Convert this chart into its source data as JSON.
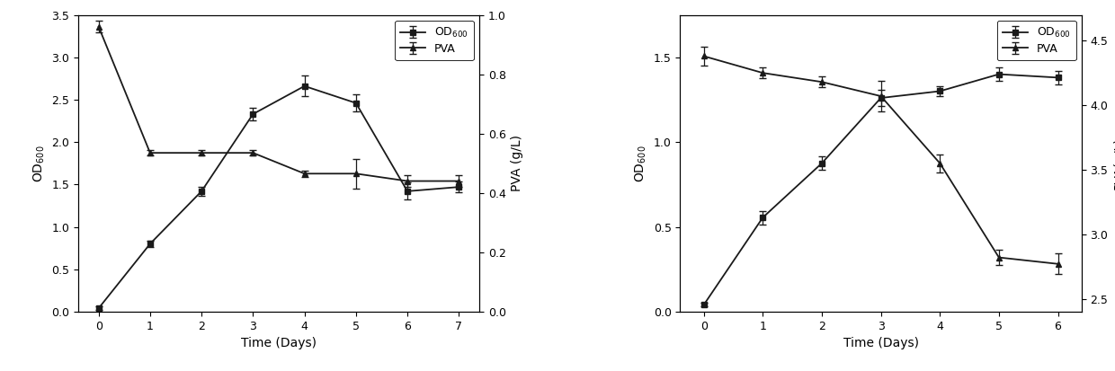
{
  "left": {
    "od_x": [
      0,
      1,
      2,
      3,
      4,
      5,
      6,
      7
    ],
    "od_y": [
      0.04,
      0.8,
      1.42,
      2.33,
      2.66,
      2.46,
      1.42,
      1.47
    ],
    "od_yerr": [
      0.02,
      0.04,
      0.05,
      0.07,
      0.12,
      0.1,
      0.1,
      0.06
    ],
    "pva_x": [
      0,
      1,
      2,
      3,
      4,
      5,
      6,
      7
    ],
    "pva_y": [
      0.96,
      0.535,
      0.535,
      0.535,
      0.465,
      0.465,
      0.44,
      0.44
    ],
    "pva_yerr": [
      0.02,
      0.01,
      0.01,
      0.01,
      0.01,
      0.05,
      0.02,
      0.02
    ],
    "ylabel_left": "OD$_{600}$",
    "ylabel_right": "PVA (g/L)",
    "xlabel": "Time (Days)",
    "ylim_left": [
      0.0,
      3.5
    ],
    "ylim_right": [
      0.0,
      1.0
    ],
    "yticks_left": [
      0.0,
      0.5,
      1.0,
      1.5,
      2.0,
      2.5,
      3.0,
      3.5
    ],
    "yticks_right": [
      0.0,
      0.2,
      0.4,
      0.6,
      0.8,
      1.0
    ],
    "xticks": [
      0,
      1,
      2,
      3,
      4,
      5,
      6,
      7
    ]
  },
  "right": {
    "od_x": [
      0,
      1,
      2,
      3,
      4,
      5,
      6
    ],
    "od_y": [
      0.04,
      0.555,
      0.875,
      1.26,
      1.3,
      1.4,
      1.38
    ],
    "od_yerr": [
      0.01,
      0.04,
      0.04,
      0.05,
      0.03,
      0.04,
      0.04
    ],
    "pva_x": [
      0,
      1,
      2,
      3,
      4,
      5,
      6
    ],
    "pva_y": [
      4.38,
      4.25,
      4.18,
      4.07,
      3.55,
      2.82,
      2.77
    ],
    "pva_yerr": [
      0.07,
      0.04,
      0.04,
      0.12,
      0.07,
      0.06,
      0.08
    ],
    "ylabel_left": "OD$_{600}$",
    "ylabel_right": "PVA(g/L)",
    "xlabel": "Time (Days)",
    "ylim_left": [
      0.0,
      1.75
    ],
    "ylim_right": [
      2.4,
      4.7
    ],
    "yticks_left": [
      0.0,
      0.5,
      1.0,
      1.5
    ],
    "yticks_right": [
      2.5,
      3.0,
      3.5,
      4.0,
      4.5
    ],
    "xticks": [
      0,
      1,
      2,
      3,
      4,
      5,
      6
    ]
  },
  "legend_od": "OD$_{600}$",
  "legend_pva": "PVA",
  "line_color": "#1a1a1a",
  "marker_od": "s",
  "marker_pva": "^",
  "markersize": 5,
  "linewidth": 1.3,
  "capsize": 3,
  "elinewidth": 0.9,
  "fontsize_label": 10,
  "fontsize_tick": 9,
  "fontsize_legend": 9
}
